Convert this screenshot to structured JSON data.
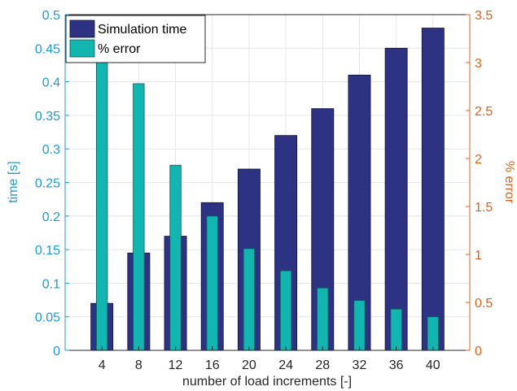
{
  "chart_data": {
    "type": "bar",
    "title": "",
    "xlabel": "number of load increments [-]",
    "ylabel": "time [s]",
    "ylabel_right": "% error",
    "categories": [
      "4",
      "8",
      "12",
      "16",
      "20",
      "24",
      "28",
      "32",
      "36",
      "40"
    ],
    "ylim": [
      0,
      0.5
    ],
    "ylim_right": [
      0,
      3.5
    ],
    "yticks": [
      "0",
      "0.05",
      "0.1",
      "0.15",
      "0.2",
      "0.25",
      "0.3",
      "0.35",
      "0.4",
      "0.45",
      "0.5"
    ],
    "yticks_right": [
      "0",
      "0.5",
      "1",
      "1.5",
      "2",
      "2.5",
      "3",
      "3.5"
    ],
    "grid": true,
    "legend_position": "top-left",
    "series": [
      {
        "name": "Simulation time",
        "axis": "left",
        "color": "#2e3282",
        "values": [
          0.07,
          0.145,
          0.17,
          0.22,
          0.27,
          0.32,
          0.36,
          0.41,
          0.45,
          0.48
        ]
      },
      {
        "name": "% error",
        "axis": "right",
        "color": "#12b5b0",
        "values": [
          3.0,
          2.78,
          1.93,
          1.4,
          1.06,
          0.83,
          0.65,
          0.52,
          0.43,
          0.35
        ]
      }
    ],
    "colors": {
      "left_axis": "#1f9ad6",
      "right_axis": "#e0621a",
      "grid": "#e6e6e6",
      "axis": "#262626"
    }
  }
}
